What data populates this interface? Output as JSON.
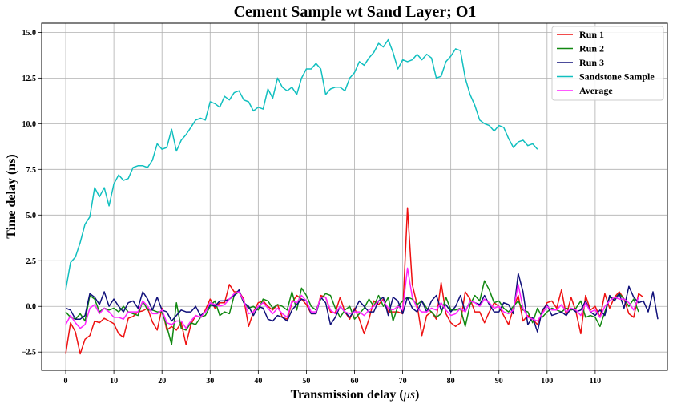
{
  "chart_data": {
    "type": "line",
    "title": "Cement Sample wt Sand Layer; O1",
    "xlabel": "Transmission delay ($\\mu s$)",
    "ylabel": "Time delay (ns)",
    "xlim": [
      -5,
      125
    ],
    "ylim": [
      -3.5,
      15.5
    ],
    "xticks": [
      0,
      10,
      20,
      30,
      40,
      50,
      60,
      70,
      80,
      90,
      100,
      110
    ],
    "yticks": [
      -2.5,
      0.0,
      2.5,
      5.0,
      7.5,
      10.0,
      12.5,
      15.0
    ],
    "ytick_labels": [
      "−2.5",
      "0.0",
      "2.5",
      "5.0",
      "7.5",
      "10.0",
      "12.5",
      "15.0"
    ],
    "grid": true,
    "legend_position": "top-right",
    "series": [
      {
        "name": "Run 1",
        "color": "#ee1111",
        "x_start": 0,
        "x_step": 1,
        "values": [
          -2.6,
          -0.9,
          -1.4,
          -2.6,
          -1.8,
          -1.6,
          -0.8,
          -0.9,
          -0.65,
          -0.8,
          -0.95,
          -1.5,
          -1.7,
          -0.65,
          -0.55,
          -0.3,
          -0.25,
          -0.1,
          -0.85,
          -1.3,
          -0.1,
          -1.3,
          -1.1,
          -1.3,
          -0.9,
          -2.1,
          -1.0,
          -0.5,
          -0.6,
          -0.2,
          0.4,
          -0.1,
          0.2,
          0.2,
          1.2,
          0.8,
          0.8,
          0.4,
          -1.1,
          -0.3,
          0.2,
          0.3,
          0.0,
          -0.2,
          0.1,
          -0.6,
          -0.7,
          0.2,
          0.6,
          0.4,
          0.1,
          -0.4,
          -0.4,
          0.6,
          0.5,
          -0.3,
          -0.35,
          0.5,
          -0.3,
          -0.7,
          -0.1,
          -0.7,
          -1.5,
          -0.7,
          0.3,
          0.1,
          0.4,
          -0.3,
          -0.3,
          -0.3,
          -0.4,
          5.4,
          1.2,
          0.1,
          -1.6,
          -0.5,
          -0.3,
          -0.7,
          1.3,
          -0.4,
          -0.9,
          -1.1,
          -0.9,
          0.8,
          0.4,
          -0.3,
          -0.3,
          -0.9,
          -0.3,
          0.2,
          0.0,
          -0.5,
          -1.0,
          -0.1,
          0.6,
          -0.8,
          -0.5,
          -0.7,
          -1.0,
          -0.3,
          0.2,
          0.3,
          -0.1,
          0.9,
          -0.5,
          0.5,
          -0.3,
          -1.5,
          0.6,
          -0.2,
          0.0,
          -0.6,
          0.7,
          -0.1,
          0.5,
          0.8,
          0.4,
          -0.4,
          -0.6,
          0.7,
          0.5
        ]
      },
      {
        "name": "Run 2",
        "color": "#118811",
        "x_start": 0,
        "x_step": 1,
        "values": [
          -0.3,
          -0.6,
          -0.7,
          -0.4,
          -0.8,
          0.6,
          0.4,
          -0.3,
          -0.1,
          -0.2,
          -0.1,
          -0.3,
          0.0,
          -0.3,
          -0.4,
          -0.5,
          0.3,
          -0.2,
          -0.2,
          -0.3,
          -0.3,
          -1.1,
          -2.1,
          0.2,
          -1.2,
          -1.3,
          -0.9,
          -1.0,
          -0.6,
          -0.5,
          0.0,
          0.3,
          -0.5,
          -0.3,
          -0.4,
          0.6,
          0.8,
          0.2,
          -0.1,
          0.0,
          -0.2,
          0.4,
          0.3,
          -0.1,
          0.1,
          0.0,
          -0.2,
          0.8,
          -0.2,
          1.0,
          0.6,
          0.0,
          -0.2,
          0.4,
          0.7,
          0.6,
          -0.1,
          -0.6,
          -0.2,
          0.0,
          -0.7,
          -0.4,
          -0.1,
          0.4,
          0.0,
          0.6,
          0.0,
          0.5,
          -0.8,
          0.0,
          0.3,
          0.5,
          0.4,
          0.1,
          0.3,
          -0.1,
          -0.3,
          -0.6,
          -0.4,
          0.5,
          -0.2,
          -0.2,
          -0.1,
          -1.1,
          0.1,
          0.6,
          0.3,
          1.4,
          0.9,
          0.2,
          0.3,
          -0.1,
          -0.3,
          0.0,
          0.3,
          -0.2,
          -0.3,
          -0.9,
          -0.1,
          -0.6,
          -0.3,
          -0.1,
          -0.2,
          -0.3,
          -0.1,
          -0.2,
          -0.1,
          0.3,
          -0.6,
          -0.5,
          -0.6,
          -1.1,
          -0.3,
          0.5,
          0.4,
          0.7,
          0.4,
          0.0,
          0.4,
          -0.3
        ]
      },
      {
        "name": "Run 3",
        "color": "#10107a",
        "x_start": 0,
        "x_step": 1,
        "values": [
          -0.1,
          -0.2,
          -0.7,
          -0.7,
          -0.5,
          0.7,
          0.5,
          0.1,
          0.8,
          0.0,
          0.4,
          0.0,
          -0.3,
          0.2,
          0.3,
          -0.1,
          0.8,
          0.4,
          -0.2,
          0.5,
          -0.2,
          -0.3,
          -0.8,
          -0.5,
          -0.2,
          -0.3,
          -0.3,
          0.0,
          -0.5,
          -0.3,
          0.1,
          0.0,
          0.3,
          0.3,
          0.4,
          0.6,
          0.9,
          0.2,
          0.0,
          -0.5,
          0.0,
          -0.1,
          -0.7,
          -0.8,
          -0.5,
          -0.6,
          -0.8,
          -0.2,
          0.1,
          0.4,
          0.3,
          -0.4,
          -0.4,
          0.5,
          0.2,
          -1.0,
          -0.6,
          0.0,
          -0.3,
          -0.6,
          -0.2,
          0.3,
          0.0,
          -0.3,
          -0.3,
          0.3,
          0.5,
          -0.5,
          0.5,
          0.3,
          -0.4,
          0.5,
          -0.1,
          -0.3,
          0.3,
          -0.3,
          0.3,
          0.6,
          -0.2,
          0.1,
          -0.3,
          0.0,
          0.6,
          -0.3,
          0.3,
          0.2,
          0.1,
          0.6,
          0.1,
          -0.3,
          -0.3,
          0.2,
          0.1,
          -0.4,
          1.8,
          0.8,
          -1.0,
          -0.6,
          -1.4,
          -0.2,
          0.1,
          -0.5,
          -0.4,
          -0.3,
          -0.5,
          -0.1,
          -0.3,
          -0.2,
          0.3,
          -0.3,
          -0.5,
          -0.2,
          -0.5,
          0.6,
          0.3,
          0.7,
          -0.1,
          1.1,
          0.5,
          0.2,
          0.3,
          -0.3,
          0.8,
          -0.7
        ]
      },
      {
        "name": "Sandstone Sample",
        "color": "#11bfbf",
        "x_start": 0,
        "x_step": 1,
        "values": [
          0.9,
          2.4,
          2.7,
          3.5,
          4.5,
          4.9,
          6.5,
          6.0,
          6.5,
          5.5,
          6.7,
          7.2,
          6.9,
          7.0,
          7.6,
          7.7,
          7.7,
          7.6,
          8.0,
          8.9,
          8.6,
          8.7,
          9.7,
          8.5,
          9.1,
          9.4,
          9.8,
          10.2,
          10.3,
          10.2,
          11.2,
          11.1,
          10.9,
          11.5,
          11.3,
          11.7,
          11.8,
          11.3,
          11.2,
          10.7,
          10.9,
          10.8,
          11.9,
          11.4,
          12.5,
          12.0,
          11.8,
          12.0,
          11.6,
          12.5,
          13.0,
          13.0,
          13.3,
          13.0,
          11.6,
          11.9,
          12.0,
          12.0,
          11.8,
          12.5,
          12.8,
          13.4,
          13.2,
          13.6,
          13.9,
          14.4,
          14.2,
          14.6,
          13.9,
          13.0,
          13.5,
          13.4,
          13.5,
          13.8,
          13.5,
          13.8,
          13.6,
          12.5,
          12.6,
          13.4,
          13.7,
          14.1,
          14.0,
          12.5,
          11.6,
          11.0,
          10.2,
          10.0,
          9.9,
          9.6,
          9.9,
          9.8,
          9.2,
          8.7,
          9.0,
          9.1,
          8.8,
          8.9,
          8.6
        ]
      },
      {
        "name": "Average",
        "color": "#ff22ff",
        "x_start": 0,
        "x_step": 1,
        "values": [
          -1.0,
          -0.5,
          -0.9,
          -1.2,
          -1.0,
          -0.1,
          0.1,
          -0.4,
          -0.1,
          -0.3,
          -0.6,
          -0.6,
          -0.7,
          -0.3,
          -0.3,
          -0.3,
          0.3,
          0.0,
          -0.4,
          -0.4,
          -0.2,
          -0.9,
          -1.0,
          -0.8,
          -0.8,
          -1.2,
          -0.8,
          -0.5,
          -0.6,
          -0.3,
          0.2,
          0.1,
          0.0,
          0.1,
          0.4,
          0.7,
          0.8,
          0.3,
          -0.4,
          -0.3,
          0.0,
          0.2,
          -0.1,
          -0.4,
          -0.1,
          -0.4,
          -0.6,
          0.3,
          0.2,
          0.6,
          0.3,
          -0.3,
          -0.3,
          0.5,
          0.5,
          -0.2,
          -0.4,
          0.0,
          -0.3,
          -0.4,
          -0.3,
          -0.3,
          -0.5,
          -0.2,
          0.0,
          0.3,
          0.3,
          -0.1,
          -0.2,
          0.0,
          -0.2,
          2.1,
          0.5,
          -0.1,
          -0.3,
          -0.3,
          -0.1,
          -0.2,
          0.2,
          -0.2,
          -0.5,
          -0.4,
          -0.1,
          -0.3,
          0.3,
          0.2,
          0.0,
          0.4,
          0.2,
          -0.1,
          0.0,
          -0.3,
          -0.4,
          -0.2,
          1.2,
          -0.1,
          -0.6,
          -0.7,
          -0.8,
          -0.4,
          0.0,
          -0.2,
          -0.2,
          0.1,
          -0.3,
          -0.1,
          -0.2,
          -0.5,
          0.2,
          -0.3,
          -0.2,
          -0.6,
          0.0,
          0.3,
          0.5,
          0.4,
          0.4,
          0.2,
          -0.2,
          0.5
        ]
      }
    ]
  }
}
